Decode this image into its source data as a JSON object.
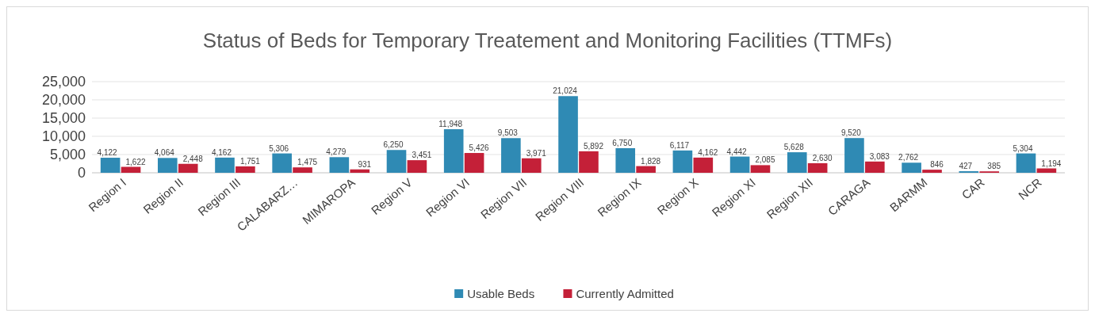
{
  "chart_data": {
    "type": "bar",
    "title": "Status of Beds for Temporary Treatement and Monitoring Facilities (TTMFs)",
    "categories": [
      "Region I",
      "Region II",
      "Region III",
      "CALABARZ…",
      "MIMAROPA",
      "Region V",
      "Region VI",
      "Region VII",
      "Region VIII",
      "Region IX",
      "Region X",
      "Region XI",
      "Region XII",
      "CARAGA",
      "BARMM",
      "CAR",
      "NCR"
    ],
    "series": [
      {
        "name": "Usable Beds",
        "color": "#2f8ab4",
        "values": [
          4122,
          4064,
          4162,
          5306,
          4279,
          6250,
          11948,
          9503,
          21024,
          6750,
          6117,
          4442,
          5628,
          9520,
          2762,
          427,
          5304
        ],
        "value_labels": [
          "4,122",
          "4,064",
          "4,162",
          "5,306",
          "4,279",
          "6,250",
          "11,948",
          "9,503",
          "21,024",
          "6,750",
          "6,117",
          "4,442",
          "5,628",
          "9,520",
          "2,762",
          "427",
          "5,304"
        ]
      },
      {
        "name": "Currently Admitted",
        "color": "#c42038",
        "values": [
          1622,
          2448,
          1751,
          1475,
          931,
          3451,
          5426,
          3971,
          5892,
          1828,
          4162,
          2085,
          2630,
          3083,
          846,
          385,
          1194
        ],
        "value_labels": [
          "1,622",
          "2,448",
          "1,751",
          "1,475",
          "931",
          "3,451",
          "5,426",
          "3,971",
          "5,892",
          "1,828",
          "4,162",
          "2,085",
          "2,630",
          "3,083",
          "846",
          "385",
          "1,194"
        ]
      }
    ],
    "ylim": [
      0,
      25000
    ],
    "yticks": [
      {
        "value": 0,
        "label": "0"
      },
      {
        "value": 5000,
        "label": "5,000"
      },
      {
        "value": 10000,
        "label": "10,000"
      },
      {
        "value": 15000,
        "label": "15,000"
      },
      {
        "value": 20000,
        "label": "20,000"
      },
      {
        "value": 25000,
        "label": "25,000"
      }
    ],
    "grid": "y",
    "legend": "bottom"
  }
}
